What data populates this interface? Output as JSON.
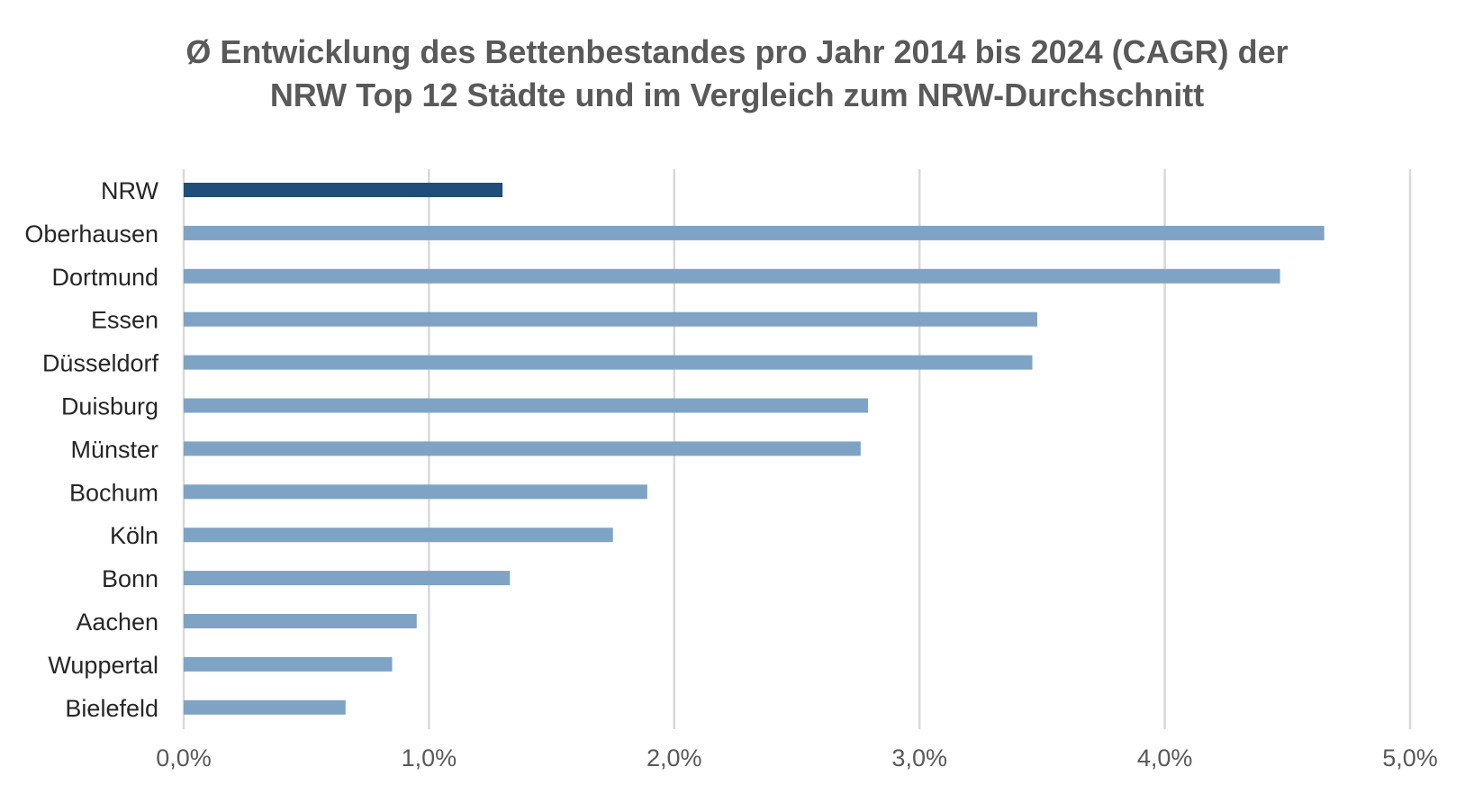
{
  "chart_data": {
    "type": "bar",
    "orientation": "horizontal",
    "title_lines": [
      "Ø Entwicklung des Bettenbestandes pro Jahr 2014 bis 2024 (CAGR) der",
      "NRW Top 12 Städte und im Vergleich zum NRW-Durchschnitt"
    ],
    "categories": [
      "NRW",
      "Oberhausen",
      "Dortmund",
      "Essen",
      "Düsseldorf",
      "Duisburg",
      "Münster",
      "Bochum",
      "Köln",
      "Bonn",
      "Aachen",
      "Wuppertal",
      "Bielefeld"
    ],
    "values": [
      1.3,
      4.65,
      4.47,
      3.48,
      3.46,
      2.79,
      2.76,
      1.89,
      1.75,
      1.33,
      0.95,
      0.85,
      0.66
    ],
    "xlim": [
      0,
      5
    ],
    "x_ticks": [
      0,
      1,
      2,
      3,
      4,
      5
    ],
    "x_tick_labels": [
      "0,0%",
      "1,0%",
      "2,0%",
      "3,0%",
      "4,0%",
      "5,0%"
    ],
    "highlight_category": "NRW",
    "colors": {
      "highlight": "#1f4e79",
      "bar": "#7ea3c4",
      "grid": "#d9d9d9",
      "title": "#595959"
    },
    "grid": true,
    "legend": false
  }
}
